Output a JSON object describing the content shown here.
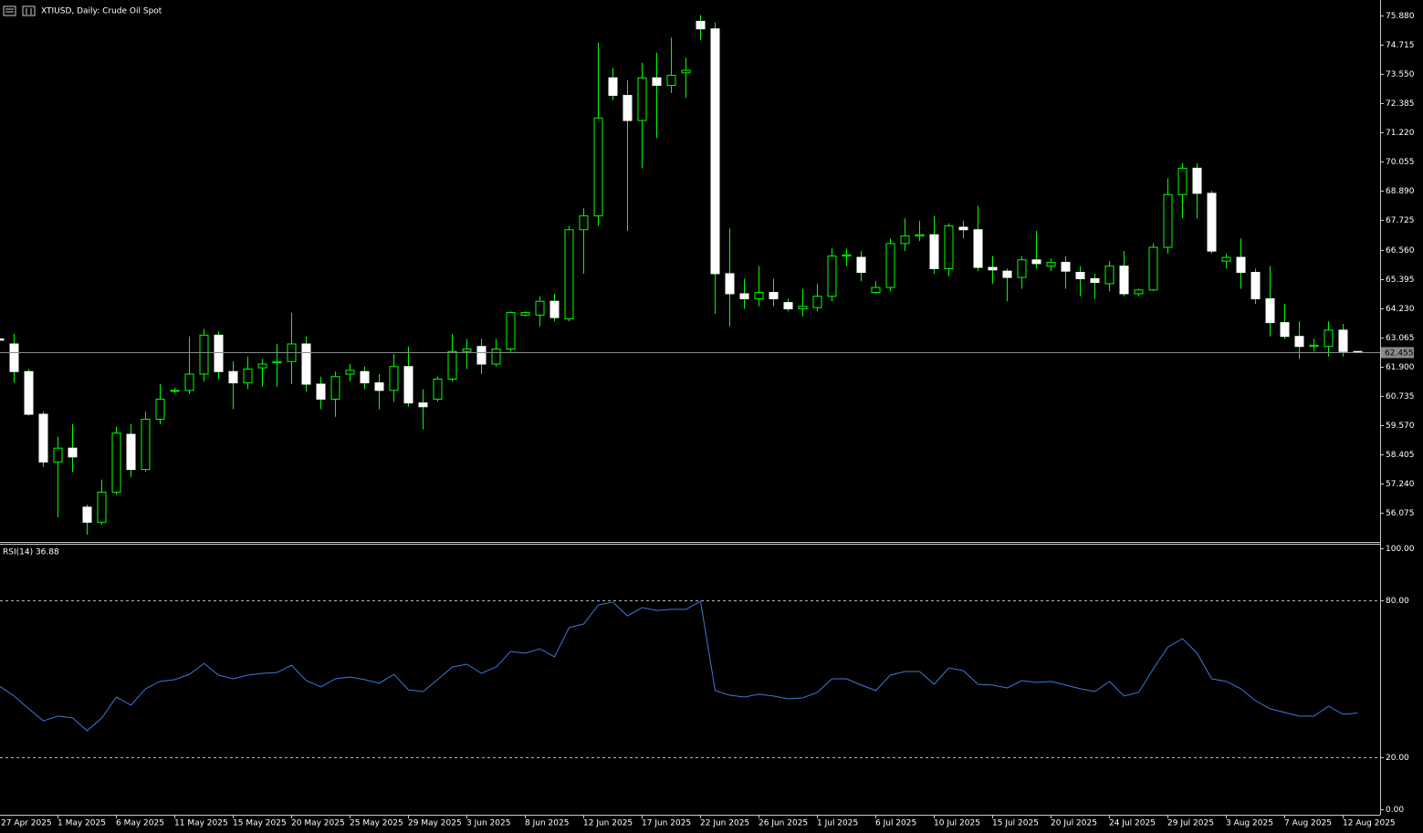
{
  "chart_data": [
    {
      "type": "candlestick",
      "title": "XTIUSD, Daily:  Crude Oil Spot",
      "categories": [
        "27 Apr 2025",
        null,
        null,
        null,
        "1 May 2025",
        null,
        null,
        null,
        "6 May 2025",
        null,
        null,
        null,
        "11 May 2025",
        null,
        null,
        null,
        "15 May 2025",
        null,
        null,
        null,
        "20 May 2025",
        null,
        null,
        null,
        "25 May 2025",
        null,
        null,
        null,
        "29 May 2025",
        null,
        null,
        null,
        "3 Jun 2025",
        null,
        null,
        null,
        "8 Jun 2025",
        null,
        null,
        null,
        "12 Jun 2025",
        null,
        null,
        null,
        "17 Jun 2025",
        null,
        null,
        null,
        "22 Jun 2025",
        null,
        null,
        null,
        "26 Jun 2025",
        null,
        null,
        null,
        "1 Jul 2025",
        null,
        null,
        null,
        "6 Jul 2025",
        null,
        null,
        null,
        "10 Jul 2025",
        null,
        null,
        null,
        "15 Jul 2025",
        null,
        null,
        null,
        "20 Jul 2025",
        null,
        null,
        null,
        "24 Jul 2025",
        null,
        null,
        null,
        "29 Jul 2025",
        null,
        null,
        null,
        "3 Aug 2025",
        null,
        null,
        null,
        "7 Aug 2025",
        null,
        null,
        null,
        "12 Aug 2025",
        null
      ],
      "open": [
        63.0,
        62.8,
        61.7,
        60.0,
        58.1,
        58.65,
        56.3,
        55.7,
        56.9,
        59.2,
        57.8,
        59.8,
        60.95,
        60.95,
        61.6,
        63.15,
        61.7,
        61.25,
        61.85,
        62.05,
        62.1,
        62.8,
        61.2,
        60.6,
        61.6,
        61.7,
        61.25,
        60.95,
        61.9,
        60.45,
        60.6,
        61.4,
        62.5,
        62.7,
        62.0,
        62.6,
        63.95,
        63.95,
        64.5,
        63.8,
        67.35,
        67.9,
        73.4,
        72.7,
        71.7,
        73.4,
        73.1,
        73.6,
        75.65,
        75.35,
        65.6,
        64.8,
        64.6,
        64.85,
        64.45,
        64.2,
        64.25,
        64.7,
        66.3,
        66.25,
        64.85,
        65.05,
        66.8,
        67.1,
        67.15,
        65.8,
        67.45,
        67.35,
        65.85,
        65.7,
        65.45,
        66.15,
        65.9,
        66.05,
        65.65,
        65.4,
        65.2,
        65.9,
        64.8,
        64.95,
        66.65,
        68.75,
        69.8,
        68.8,
        66.1,
        66.25,
        65.65,
        64.6,
        63.65,
        63.1,
        62.7,
        62.7,
        63.35,
        62.5
      ],
      "high": [
        63.1,
        63.2,
        61.8,
        60.1,
        59.1,
        59.6,
        56.4,
        57.4,
        59.5,
        59.6,
        60.1,
        61.2,
        61.05,
        63.1,
        63.4,
        63.3,
        62.1,
        62.3,
        62.2,
        62.8,
        64.05,
        63.1,
        61.5,
        61.7,
        62.0,
        61.9,
        61.6,
        62.4,
        62.7,
        61.0,
        61.5,
        63.2,
        63.0,
        63.0,
        63.0,
        64.1,
        64.1,
        64.7,
        64.8,
        67.5,
        68.2,
        74.8,
        73.8,
        73.3,
        74.0,
        74.4,
        75.0,
        74.2,
        75.9,
        75.6,
        67.4,
        65.4,
        65.9,
        65.4,
        64.6,
        65.0,
        65.2,
        66.6,
        66.6,
        66.5,
        65.3,
        67.0,
        67.8,
        67.7,
        67.9,
        67.6,
        67.7,
        68.3,
        66.3,
        65.8,
        66.3,
        67.3,
        66.2,
        66.3,
        65.9,
        65.6,
        66.1,
        66.5,
        65.0,
        66.8,
        69.4,
        70.0,
        70.0,
        68.9,
        66.4,
        67.0,
        65.8,
        65.9,
        64.4,
        63.7,
        63.0,
        63.7,
        63.6,
        62.5
      ],
      "low": [
        62.9,
        61.25,
        59.95,
        57.9,
        55.9,
        57.7,
        55.2,
        55.6,
        56.8,
        57.5,
        57.7,
        59.6,
        60.85,
        60.8,
        61.3,
        61.4,
        60.2,
        61.0,
        61.1,
        61.1,
        61.2,
        60.9,
        60.2,
        59.9,
        61.3,
        61.0,
        60.2,
        60.5,
        60.3,
        59.4,
        60.5,
        61.3,
        61.8,
        61.6,
        61.9,
        62.5,
        63.9,
        63.5,
        63.7,
        63.7,
        65.6,
        67.5,
        72.5,
        67.3,
        69.8,
        71.0,
        72.8,
        72.6,
        74.9,
        64.0,
        63.5,
        64.2,
        64.3,
        64.3,
        64.1,
        63.9,
        64.1,
        64.5,
        65.9,
        65.3,
        64.8,
        64.9,
        66.5,
        66.9,
        65.6,
        65.5,
        67.0,
        65.7,
        65.2,
        64.5,
        65.0,
        65.8,
        65.7,
        65.0,
        64.7,
        64.6,
        64.9,
        64.7,
        64.7,
        64.9,
        66.4,
        67.8,
        67.8,
        66.4,
        65.8,
        65.0,
        64.4,
        63.1,
        63.0,
        62.2,
        62.5,
        62.3,
        62.3,
        62.45
      ],
      "close": [
        62.95,
        61.7,
        60.0,
        58.1,
        58.65,
        58.3,
        55.7,
        56.9,
        59.25,
        57.8,
        59.8,
        60.6,
        60.95,
        61.6,
        63.15,
        61.7,
        61.25,
        61.8,
        62.0,
        62.1,
        62.8,
        61.2,
        60.6,
        61.5,
        61.75,
        61.25,
        60.95,
        61.9,
        60.45,
        60.3,
        61.4,
        62.5,
        62.6,
        62.0,
        62.6,
        64.05,
        64.05,
        64.5,
        63.85,
        67.35,
        67.9,
        71.8,
        72.7,
        71.7,
        73.4,
        73.1,
        73.5,
        73.7,
        75.35,
        65.6,
        64.8,
        64.6,
        64.85,
        64.6,
        64.2,
        64.3,
        64.7,
        66.3,
        66.35,
        65.65,
        65.05,
        66.8,
        67.1,
        67.15,
        65.8,
        67.5,
        67.35,
        65.85,
        65.75,
        65.45,
        66.15,
        66.0,
        66.05,
        65.7,
        65.4,
        65.25,
        65.9,
        64.8,
        64.95,
        66.65,
        68.75,
        69.8,
        68.8,
        66.5,
        66.25,
        65.65,
        64.6,
        63.65,
        63.1,
        62.7,
        62.75,
        63.35,
        62.5,
        62.455
      ],
      "up_color": "#00ff00",
      "down_color": "#ffffff",
      "current_price": 62.455,
      "ylim": [
        54.95,
        76.5
      ],
      "yticks": [
        {
          "value": 75.88,
          "label": "75.880"
        },
        {
          "value": 74.715,
          "label": "74.715"
        },
        {
          "value": 73.55,
          "label": "73.550"
        },
        {
          "value": 72.385,
          "label": "72.385"
        },
        {
          "value": 71.22,
          "label": "71.220"
        },
        {
          "value": 70.055,
          "label": "70.055"
        },
        {
          "value": 68.89,
          "label": "68.890"
        },
        {
          "value": 67.725,
          "label": "67.725"
        },
        {
          "value": 66.56,
          "label": "66.560"
        },
        {
          "value": 65.395,
          "label": "65.395"
        },
        {
          "value": 64.23,
          "label": "64.230"
        },
        {
          "value": 63.065,
          "label": "63.065"
        },
        {
          "value": 61.9,
          "label": "61.900"
        },
        {
          "value": 60.735,
          "label": "60.735"
        },
        {
          "value": 59.57,
          "label": "59.570"
        },
        {
          "value": 58.405,
          "label": "58.405"
        },
        {
          "value": 57.24,
          "label": "57.240"
        },
        {
          "value": 56.075,
          "label": "56.075"
        }
      ]
    },
    {
      "type": "line",
      "title": "RSI(14) 36.88",
      "series": [
        {
          "name": "RSI(14)",
          "color": "#3a7bd5",
          "values": [
            47.2,
            43.4,
            38.5,
            33.9,
            35.7,
            35.0,
            30.1,
            35.0,
            43.0,
            39.9,
            46.2,
            49.0,
            49.7,
            51.7,
            55.9,
            51.4,
            50.0,
            51.4,
            52.1,
            52.4,
            55.2,
            49.3,
            46.9,
            50.0,
            50.7,
            49.7,
            48.3,
            51.7,
            45.8,
            45.1,
            49.7,
            54.5,
            55.6,
            52.1,
            54.5,
            60.5,
            59.8,
            61.5,
            58.4,
            69.6,
            71.0,
            78.3,
            79.4,
            74.1,
            77.3,
            76.2,
            76.6,
            76.6,
            79.7,
            45.5,
            43.7,
            43.0,
            44.1,
            43.4,
            42.3,
            42.7,
            44.8,
            50.0,
            50.0,
            47.6,
            45.5,
            51.4,
            52.8,
            52.8,
            47.9,
            54.2,
            53.1,
            47.9,
            47.6,
            46.5,
            49.3,
            48.6,
            49.0,
            47.6,
            46.2,
            45.1,
            49.0,
            43.4,
            44.8,
            53.8,
            62.2,
            65.4,
            59.8,
            50.0,
            49.0,
            46.2,
            41.6,
            38.5,
            37.1,
            35.7,
            35.7,
            39.5,
            36.4,
            36.88
          ]
        }
      ],
      "levels": [
        80,
        20
      ],
      "ylim": [
        -2.1,
        101.4
      ],
      "yticks": [
        {
          "value": 100,
          "label": "100.00"
        },
        {
          "value": 80,
          "label": "80.00"
        },
        {
          "value": 20,
          "label": "20.00"
        },
        {
          "value": 0,
          "label": "0.00"
        }
      ]
    }
  ]
}
